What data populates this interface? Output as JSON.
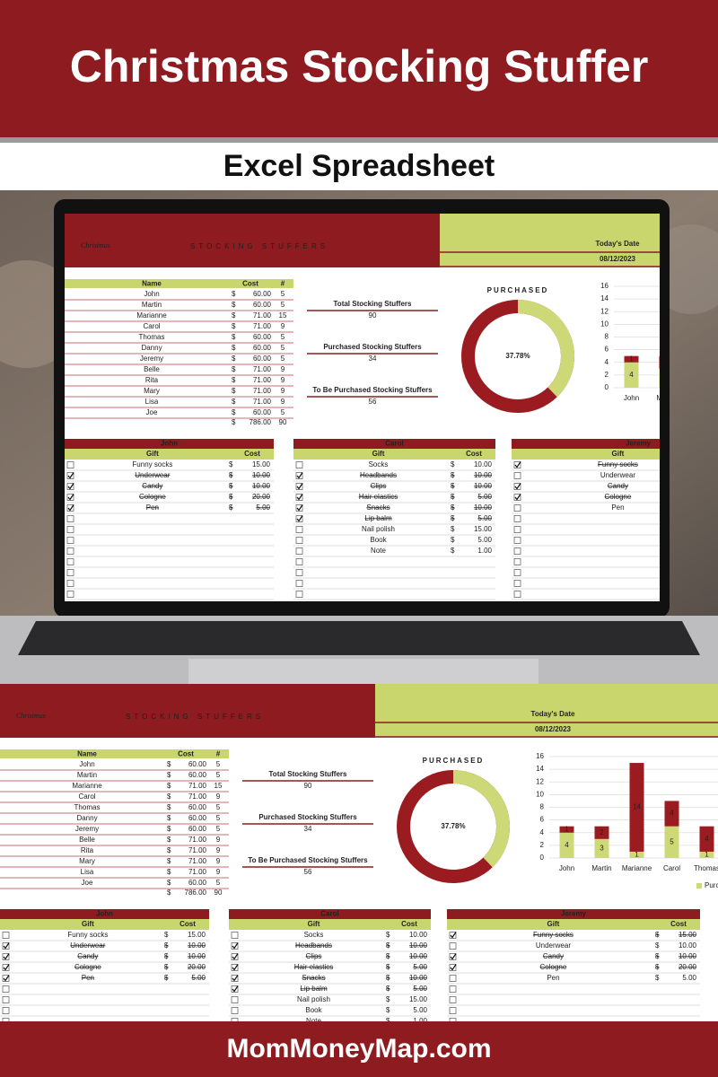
{
  "banner": {
    "title": "Christmas Stocking Stuffer",
    "subtitle": "Excel Spreadsheet"
  },
  "sheet": {
    "header": {
      "brand": "Christmas",
      "title": "STOCKING STUFFERS",
      "date_label": "Today's Date",
      "date": "08/12/2023"
    },
    "currency": "$",
    "summary": {
      "columns": [
        "Name",
        "Cost",
        "#"
      ],
      "rows": [
        [
          "John",
          "60.00",
          5
        ],
        [
          "Martin",
          "60.00",
          5
        ],
        [
          "Marianne",
          "71.00",
          15
        ],
        [
          "Carol",
          "71.00",
          9
        ],
        [
          "Thomas",
          "60.00",
          5
        ],
        [
          "Danny",
          "60.00",
          5
        ],
        [
          "Jeremy",
          "60.00",
          5
        ],
        [
          "Belle",
          "71.00",
          9
        ],
        [
          "Rita",
          "71.00",
          9
        ],
        [
          "Mary",
          "71.00",
          9
        ],
        [
          "Lisa",
          "71.00",
          9
        ],
        [
          "Joe",
          "60.00",
          5
        ]
      ],
      "total": [
        "786.00",
        90
      ]
    },
    "stats": [
      {
        "label": "Total Stocking Stuffers",
        "value": 90
      },
      {
        "label": "Purchased Stocking Stuffers",
        "value": 34
      },
      {
        "label": "To Be Purchased Stocking Stuffers",
        "value": 56
      }
    ],
    "donut": {
      "title": "PURCHASED",
      "value": 37.78,
      "label": "37.78%",
      "color": "#cdd877",
      "rest_color": "#9a1b20"
    },
    "bar_chart": {
      "type": "bar",
      "stacked": true,
      "categories": [
        "John",
        "Martin",
        "Marianne",
        "Carol",
        "Thomas"
      ],
      "series": [
        {
          "name": "Purchased",
          "color": "#cdd877",
          "values": [
            4,
            3,
            1,
            5,
            1
          ]
        },
        {
          "color": "#9a1b20",
          "values": [
            1,
            2,
            14,
            4,
            4
          ]
        }
      ],
      "ylim": [
        0,
        16
      ],
      "yticks": [
        0,
        2,
        4,
        6,
        8,
        10,
        12,
        14,
        16
      ],
      "grid": true
    },
    "gift_columns": [
      "Gift",
      "Cost"
    ],
    "gift_lists": [
      {
        "person": "John",
        "items": [
          {
            "gift": "Funny socks",
            "cost": "15.00",
            "checked": false
          },
          {
            "gift": "Underwear",
            "cost": "10.00",
            "checked": true
          },
          {
            "gift": "Candy",
            "cost": "10.00",
            "checked": true
          },
          {
            "gift": "Cologne",
            "cost": "20.00",
            "checked": true
          },
          {
            "gift": "Pen",
            "cost": "5.00",
            "checked": true
          }
        ]
      },
      {
        "person": "Carol",
        "items": [
          {
            "gift": "Socks",
            "cost": "10.00",
            "checked": false
          },
          {
            "gift": "Headbands",
            "cost": "10.00",
            "checked": true
          },
          {
            "gift": "Clips",
            "cost": "10.00",
            "checked": true
          },
          {
            "gift": "Hair elastics",
            "cost": "5.00",
            "checked": true
          },
          {
            "gift": "Snacks",
            "cost": "10.00",
            "checked": true
          },
          {
            "gift": "Lip balm",
            "cost": "5.00",
            "checked": true
          },
          {
            "gift": "Nail polish",
            "cost": "15.00",
            "checked": false
          },
          {
            "gift": "Book",
            "cost": "5.00",
            "checked": false
          },
          {
            "gift": "Note",
            "cost": "1.00",
            "checked": false
          }
        ]
      },
      {
        "person": "Jeremy",
        "items": [
          {
            "gift": "Funny socks",
            "cost": "15.00",
            "checked": true
          },
          {
            "gift": "Underwear",
            "cost": "10.00",
            "checked": false
          },
          {
            "gift": "Candy",
            "cost": "10.00",
            "checked": true
          },
          {
            "gift": "Cologne",
            "cost": "20.00",
            "checked": true
          },
          {
            "gift": "Pen",
            "cost": "5.00",
            "checked": false
          }
        ]
      }
    ]
  },
  "footer": "MomMoneyMap.com"
}
